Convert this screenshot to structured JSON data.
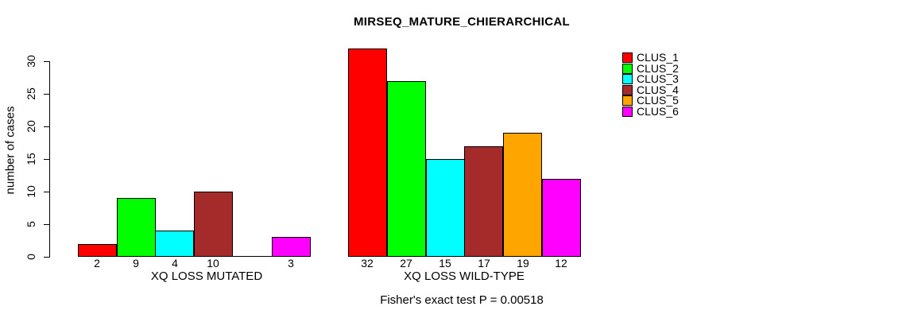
{
  "title": "MIRSEQ_MATURE_CHIERARCHICAL",
  "chart_data": {
    "type": "bar",
    "title": "MIRSEQ_MATURE_CHIERARCHICAL",
    "xlabel": "",
    "ylabel": "number of cases",
    "ylim": [
      0,
      33
    ],
    "yticks": [
      0,
      5,
      10,
      15,
      20,
      25,
      30
    ],
    "grid": false,
    "legend_position": "top-right",
    "categories": [
      "XQ LOSS MUTATED",
      "XQ LOSS WILD-TYPE"
    ],
    "series": [
      {
        "name": "CLUS_1",
        "color": "#FF0000",
        "values": [
          2,
          32
        ]
      },
      {
        "name": "CLUS_2",
        "color": "#00FF00",
        "values": [
          9,
          27
        ]
      },
      {
        "name": "CLUS_3",
        "color": "#00FFFF",
        "values": [
          4,
          15
        ]
      },
      {
        "name": "CLUS_4",
        "color": "#A52A2A",
        "values": [
          10,
          17
        ]
      },
      {
        "name": "CLUS_5",
        "color": "#FFA500",
        "values": [
          0,
          19
        ]
      },
      {
        "name": "CLUS_6",
        "color": "#FF00FF",
        "values": [
          3,
          12
        ]
      }
    ],
    "bar_value_labels": [
      [
        "2",
        "9",
        "4",
        "10",
        "",
        "3"
      ],
      [
        "32",
        "27",
        "15",
        "17",
        "19",
        "12"
      ]
    ],
    "annotation": "Fisher's exact test P = 0.00518"
  }
}
